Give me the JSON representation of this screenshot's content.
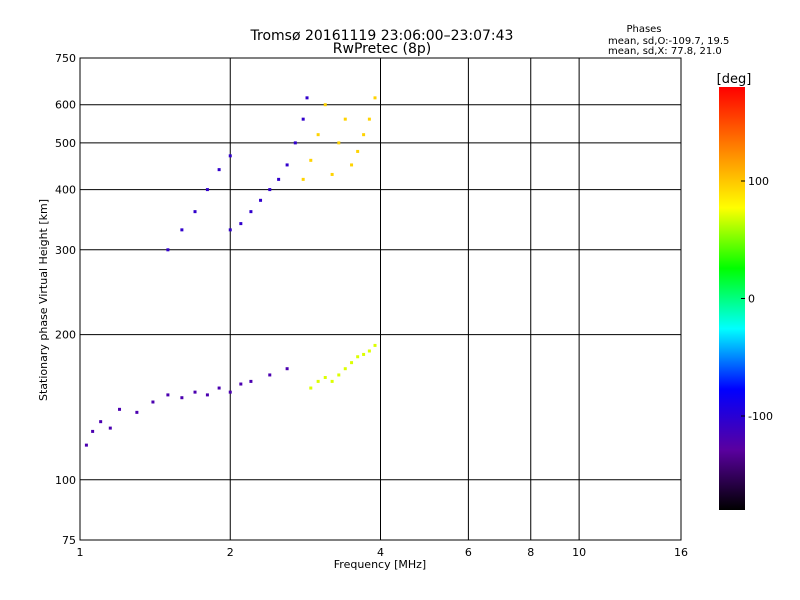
{
  "chart_data": {
    "type": "scatter",
    "title": "Tromsø 20161119 23:06:00–23:07:43",
    "subtitle": "RwPretec (8p)",
    "xlabel": "Frequency [MHz]",
    "ylabel": "Stationary phase Virtual Height [km]",
    "x_scale": "log",
    "y_scale": "log",
    "xlim": [
      1,
      16
    ],
    "ylim": [
      75,
      750
    ],
    "x_ticks": [
      1,
      2,
      4,
      6,
      8,
      10,
      16
    ],
    "y_ticks": [
      75,
      100,
      200,
      300,
      400,
      500,
      600,
      750
    ],
    "grid": true,
    "stats": {
      "heading": "Phases",
      "line_o": "mean, sd,O:-109.7, 19.5",
      "line_x": "mean, sd,X:  77.8, 21.0"
    },
    "colorbar": {
      "label": "[deg]",
      "range": [
        -180,
        180
      ],
      "ticks": [
        100,
        0,
        -100
      ],
      "colors": [
        "#000000",
        "#5a00a0",
        "#0000ff",
        "#00ffff",
        "#00ff00",
        "#ffff00",
        "#ff8000",
        "#ff0000"
      ]
    },
    "series": [
      {
        "name": "",
        "role": "O-trace lower layer",
        "color_value": -120,
        "points": [
          [
            1.03,
            118
          ],
          [
            1.06,
            126
          ],
          [
            1.1,
            132
          ],
          [
            1.15,
            128
          ],
          [
            1.2,
            140
          ],
          [
            1.3,
            138
          ],
          [
            1.4,
            145
          ],
          [
            1.5,
            150
          ],
          [
            1.6,
            148
          ],
          [
            1.7,
            152
          ],
          [
            1.8,
            150
          ],
          [
            1.9,
            155
          ],
          [
            2.0,
            152
          ],
          [
            2.1,
            158
          ],
          [
            2.2,
            160
          ],
          [
            2.4,
            165
          ],
          [
            2.6,
            170
          ]
        ]
      },
      {
        "name": "",
        "role": "O-trace upper layer",
        "color_value": -105,
        "points": [
          [
            1.5,
            300
          ],
          [
            1.6,
            330
          ],
          [
            1.7,
            360
          ],
          [
            1.8,
            400
          ],
          [
            1.9,
            440
          ],
          [
            2.0,
            470
          ],
          [
            2.0,
            330
          ],
          [
            2.1,
            340
          ],
          [
            2.2,
            360
          ],
          [
            2.3,
            380
          ],
          [
            2.4,
            400
          ],
          [
            2.5,
            420
          ],
          [
            2.6,
            450
          ],
          [
            2.7,
            500
          ],
          [
            2.8,
            560
          ],
          [
            2.85,
            620
          ]
        ]
      },
      {
        "name": "",
        "role": "X-trace lower layer",
        "color_value": 70,
        "points": [
          [
            2.9,
            155
          ],
          [
            3.0,
            160
          ],
          [
            3.1,
            163
          ],
          [
            3.2,
            160
          ],
          [
            3.3,
            165
          ],
          [
            3.4,
            170
          ],
          [
            3.5,
            175
          ],
          [
            3.6,
            180
          ],
          [
            3.7,
            182
          ],
          [
            3.8,
            185
          ],
          [
            3.9,
            190
          ]
        ]
      },
      {
        "name": "",
        "role": "X-trace upper layer",
        "color_value": 95,
        "points": [
          [
            2.8,
            420
          ],
          [
            2.9,
            460
          ],
          [
            3.0,
            520
          ],
          [
            3.1,
            600
          ],
          [
            3.2,
            430
          ],
          [
            3.3,
            500
          ],
          [
            3.4,
            560
          ],
          [
            3.5,
            450
          ],
          [
            3.6,
            480
          ],
          [
            3.7,
            520
          ],
          [
            3.8,
            560
          ],
          [
            3.9,
            620
          ]
        ]
      }
    ]
  }
}
